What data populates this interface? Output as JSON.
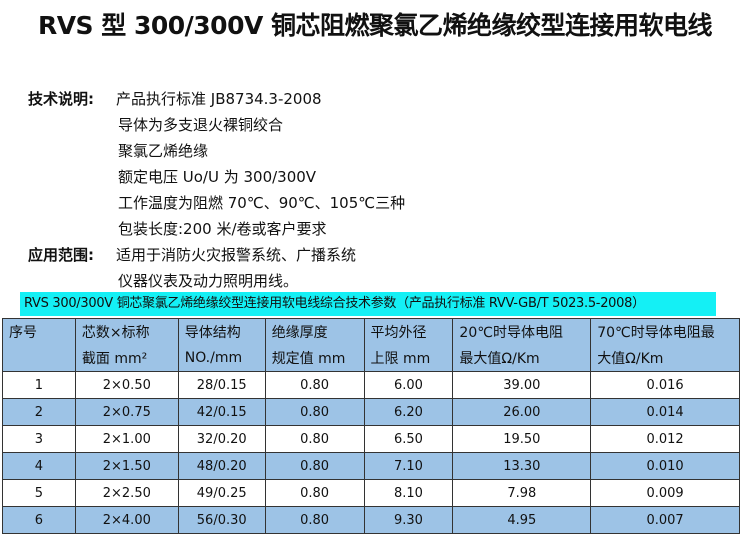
{
  "title": "RVS 型 300/300V 铜芯阻燃聚氯乙烯绝缘绞型连接用软电线",
  "tech": {
    "label": "技术说明:",
    "lines": [
      "产品执行标准 JB8734.3-2008",
      "导体为多支退火裸铜绞合",
      "聚氯乙烯绝缘",
      "额定电压 Uo/U 为 300/300V",
      "工作温度为阻燃 70℃、90℃、105℃三种",
      "包装长度:200 米/卷或客户要求"
    ]
  },
  "application": {
    "label": "应用范围:",
    "lines": [
      "适用于消防火灾报警系统、广播系统",
      "仪器仪表及动力照明用线。"
    ]
  },
  "table_caption": "RVS 300/300V 铜芯聚氯乙烯绝缘绞型连接用软电线综合技术参数（产品执行标准 RVV-GB/T 5023.5-2008）",
  "headers": [
    [
      "序号",
      ""
    ],
    [
      "芯数×标称",
      "截面 mm²"
    ],
    [
      "导体结构",
      "NO./mm"
    ],
    [
      "绝缘厚度",
      "规定值 mm"
    ],
    [
      "平均外径",
      "上限 mm"
    ],
    [
      "20℃时导体电阻",
      "最大值Ω/Km"
    ],
    [
      "70℃时导体电阻最",
      "大值Ω/Km"
    ]
  ],
  "rows": [
    [
      "1",
      "2×0.50",
      "28/0.15",
      "0.80",
      "6.00",
      "39.00",
      "0.016"
    ],
    [
      "2",
      "2×0.75",
      "42/0.15",
      "0.80",
      "6.20",
      "26.00",
      "0.014"
    ],
    [
      "3",
      "2×1.00",
      "32/0.20",
      "0.80",
      "6.50",
      "19.50",
      "0.012"
    ],
    [
      "4",
      "2×1.50",
      "48/0.20",
      "0.80",
      "7.10",
      "13.30",
      "0.010"
    ],
    [
      "5",
      "2×2.50",
      "49/0.25",
      "0.80",
      "8.10",
      "7.98",
      "0.009"
    ],
    [
      "6",
      "2×4.00",
      "56/0.30",
      "0.80",
      "9.30",
      "4.95",
      "0.007"
    ]
  ],
  "colors": {
    "caption_bg": "#14f0f5",
    "header_bg": "#9dc3e6",
    "alt_row_bg": "#9dc3e6"
  }
}
